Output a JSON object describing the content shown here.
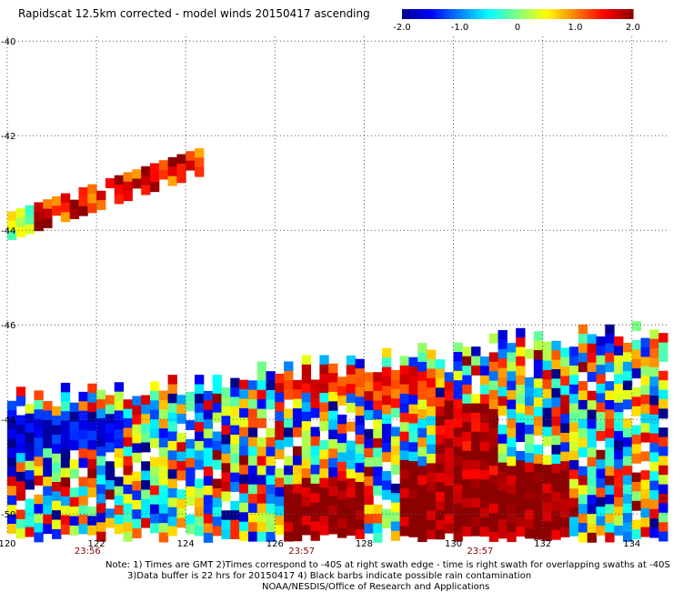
{
  "title": "Rapidscat 12.5km corrected - model winds 20150417 ascending",
  "colorbar": {
    "ticks": [
      "-2.0",
      "-1.0",
      "0",
      "1.0",
      "2.0"
    ],
    "range": [
      -2.0,
      2.0
    ],
    "colors": [
      "#00008b",
      "#0000ff",
      "#0080ff",
      "#00ffff",
      "#80ff80",
      "#ffff00",
      "#ff8000",
      "#ff0000",
      "#8b0000"
    ]
  },
  "notes": [
    "Note: 1) Times are GMT 2)Times correspond to -40S at right swath edge - time is right swath for overlapping swaths at -40S",
    "3)Data buffer is 22 hrs for 20150417 4) Black barbs indicate possible rain contamination",
    "NOAA/NESDIS/Office of Research and Applications"
  ],
  "chart_data": {
    "type": "heatmap",
    "title": "Rapidscat 12.5km corrected - model winds 20150417 ascending",
    "x_ticks": [
      "120",
      "122",
      "124",
      "126",
      "128",
      "130",
      "132",
      "134"
    ],
    "y_ticks": [
      "-40",
      "-42",
      "-44",
      "-46",
      "-48",
      "-50"
    ],
    "xlim": [
      120,
      134.8
    ],
    "ylim": [
      -50.4,
      -39.9
    ],
    "time_labels": [
      {
        "lon": 121.8,
        "text": "23:56"
      },
      {
        "lon": 126.6,
        "text": "23:57"
      },
      {
        "lon": 130.6,
        "text": "23:57"
      }
    ],
    "grid": true,
    "colorbar_range": [
      -2.0,
      2.0
    ],
    "cell_size_deg": 0.2,
    "regions": [
      {
        "name": "north-band",
        "lon": [
          120,
          124.4
        ],
        "lat_top": [
          -43.6,
          -42.2
        ],
        "lat_thickness": 0.6,
        "bias": 1.5
      },
      {
        "name": "main-swath",
        "lon": [
          120,
          134.8
        ],
        "lat_top": [
          -47.6,
          -46.0
        ],
        "lat_bottom": -50.4,
        "bias": 0.0
      },
      {
        "name": "hot-core-1",
        "lon": [
          126.2,
          128.0
        ],
        "lat": [
          -50.4,
          -49.2
        ],
        "bias": 2.0
      },
      {
        "name": "hot-core-2",
        "lon": [
          128.8,
          132.4
        ],
        "lat": [
          -50.4,
          -48.8
        ],
        "bias": 2.0
      },
      {
        "name": "hot-column",
        "lon": [
          129.6,
          130.8
        ],
        "lat": [
          -49.2,
          -47.6
        ],
        "bias": 1.8
      },
      {
        "name": "hot-top-band",
        "lon": [
          126.0,
          129.6
        ],
        "lat": [
          -47.4,
          -46.8
        ],
        "bias": 1.4
      },
      {
        "name": "cool-west",
        "lon": [
          120,
          122.6
        ],
        "lat": [
          -48.6,
          -47.8
        ],
        "bias": -1.6
      }
    ]
  }
}
